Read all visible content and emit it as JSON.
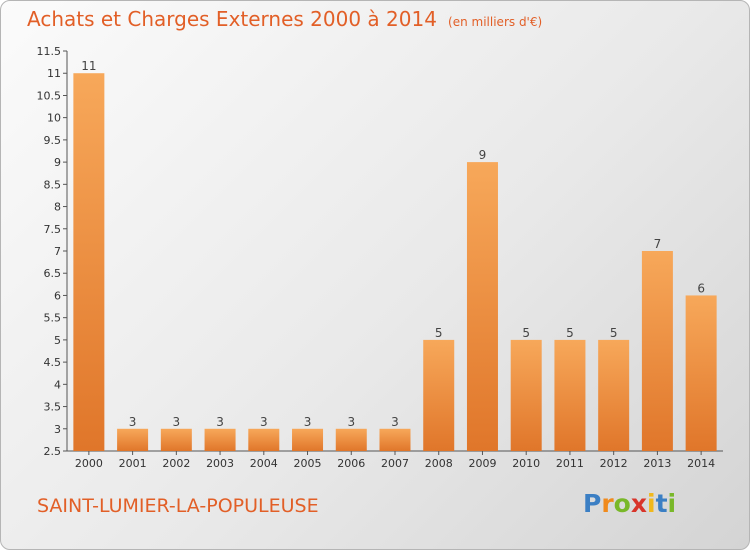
{
  "title": "Achats et Charges Externes 2000 à 2014",
  "unit": "(en milliers d'€)",
  "town": "SAINT-LUMIER-LA-POPULEUSE",
  "brand": {
    "text": "Proxiti",
    "letters": [
      "P",
      "r",
      "o",
      "x",
      "i",
      "t",
      "i"
    ],
    "colors": [
      "#3b7fc4",
      "#f08a1c",
      "#79b829",
      "#d8342a",
      "#f0b81c",
      "#3b7fc4",
      "#79b829"
    ]
  },
  "colors": {
    "accent": "#e25f27",
    "bar_top": "#f7a85a",
    "bar_bottom": "#e0762a",
    "axis": "#555555"
  },
  "chart_data": {
    "type": "bar",
    "title": "Achats et Charges Externes 2000 à 2014",
    "subtitle": "(en milliers d'€)",
    "categories": [
      "2000",
      "2001",
      "2002",
      "2003",
      "2004",
      "2005",
      "2006",
      "2007",
      "2008",
      "2009",
      "2010",
      "2011",
      "2012",
      "2013",
      "2014"
    ],
    "values": [
      11,
      3,
      3,
      3,
      3,
      3,
      3,
      3,
      5,
      9,
      5,
      5,
      5,
      7,
      6
    ],
    "value_labels": [
      "11",
      "3",
      "3",
      "3",
      "3",
      "3",
      "3",
      "3",
      "5",
      "9",
      "5",
      "5",
      "5",
      "7",
      "6"
    ],
    "ylim": [
      2.5,
      11.5
    ],
    "yticks": [
      "2.5",
      "3",
      "3.5",
      "4",
      "4.5",
      "5",
      "5.5",
      "6",
      "6.5",
      "7",
      "7.5",
      "8",
      "8.5",
      "9",
      "9.5",
      "10",
      "10.5",
      "11",
      "11.5"
    ],
    "grid": false,
    "legend": "none"
  }
}
